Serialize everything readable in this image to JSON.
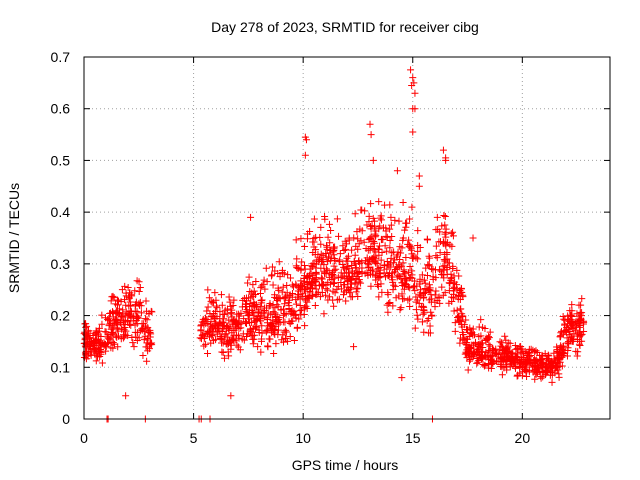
{
  "chart_data": {
    "type": "scatter",
    "title": "Day 278 of 2023, SRMTID for receiver cibg",
    "xlabel": "GPS time / hours",
    "ylabel": "SRMTID / TECUs",
    "xlim": [
      0,
      24
    ],
    "ylim": [
      0,
      0.7
    ],
    "xticks": [
      0,
      5,
      10,
      15,
      20
    ],
    "yticks": [
      0,
      0.1,
      0.2,
      0.3,
      0.4,
      0.5,
      0.6,
      0.7
    ],
    "xtick_labels": [
      "0",
      "5",
      "10",
      "15",
      "20"
    ],
    "ytick_labels": [
      "0",
      "0.1",
      "0.2",
      "0.3",
      "0.4",
      "0.5",
      "0.6",
      "0.7"
    ],
    "grid": true,
    "marker": "+",
    "color": "#ff0000",
    "series_description": "Dense scatter of approx. 2000 '+' points; envelope (hour, low, median, high) used to regenerate",
    "envelope": [
      {
        "x": 0.0,
        "lo": 0.1,
        "med": 0.15,
        "hi": 0.22
      },
      {
        "x": 0.5,
        "lo": 0.09,
        "med": 0.14,
        "hi": 0.21
      },
      {
        "x": 1.0,
        "lo": 0.1,
        "med": 0.16,
        "hi": 0.25
      },
      {
        "x": 1.5,
        "lo": 0.12,
        "med": 0.19,
        "hi": 0.29
      },
      {
        "x": 2.0,
        "lo": 0.12,
        "med": 0.2,
        "hi": 0.31
      },
      {
        "x": 2.5,
        "lo": 0.12,
        "med": 0.19,
        "hi": 0.3
      },
      {
        "x": 3.0,
        "lo": 0.1,
        "med": 0.16,
        "hi": 0.24
      },
      {
        "x": 5.3,
        "lo": 0.11,
        "med": 0.17,
        "hi": 0.24
      },
      {
        "x": 5.8,
        "lo": 0.12,
        "med": 0.19,
        "hi": 0.29
      },
      {
        "x": 6.5,
        "lo": 0.08,
        "med": 0.17,
        "hi": 0.26
      },
      {
        "x": 7.5,
        "lo": 0.12,
        "med": 0.2,
        "hi": 0.3
      },
      {
        "x": 8.5,
        "lo": 0.1,
        "med": 0.2,
        "hi": 0.32
      },
      {
        "x": 9.5,
        "lo": 0.12,
        "med": 0.22,
        "hi": 0.36
      },
      {
        "x": 10.3,
        "lo": 0.18,
        "med": 0.28,
        "hi": 0.45
      },
      {
        "x": 11.0,
        "lo": 0.2,
        "med": 0.3,
        "hi": 0.42
      },
      {
        "x": 12.0,
        "lo": 0.18,
        "med": 0.27,
        "hi": 0.4
      },
      {
        "x": 13.0,
        "lo": 0.22,
        "med": 0.32,
        "hi": 0.5
      },
      {
        "x": 14.0,
        "lo": 0.18,
        "med": 0.3,
        "hi": 0.46
      },
      {
        "x": 15.0,
        "lo": 0.15,
        "med": 0.28,
        "hi": 0.48
      },
      {
        "x": 15.5,
        "lo": 0.13,
        "med": 0.22,
        "hi": 0.38
      },
      {
        "x": 16.5,
        "lo": 0.2,
        "med": 0.32,
        "hi": 0.46
      },
      {
        "x": 17.0,
        "lo": 0.14,
        "med": 0.24,
        "hi": 0.35
      },
      {
        "x": 17.5,
        "lo": 0.09,
        "med": 0.14,
        "hi": 0.22
      },
      {
        "x": 19.0,
        "lo": 0.08,
        "med": 0.12,
        "hi": 0.17
      },
      {
        "x": 20.5,
        "lo": 0.07,
        "med": 0.11,
        "hi": 0.15
      },
      {
        "x": 21.5,
        "lo": 0.06,
        "med": 0.1,
        "hi": 0.14
      },
      {
        "x": 22.0,
        "lo": 0.1,
        "med": 0.17,
        "hi": 0.24
      },
      {
        "x": 22.8,
        "lo": 0.12,
        "med": 0.19,
        "hi": 0.25
      }
    ],
    "segments": [
      [
        0.0,
        3.1
      ],
      [
        5.3,
        22.8
      ]
    ],
    "outliers": [
      {
        "x": 14.9,
        "y": 0.675
      },
      {
        "x": 15.0,
        "y": 0.66
      },
      {
        "x": 15.05,
        "y": 0.65
      },
      {
        "x": 14.95,
        "y": 0.645
      },
      {
        "x": 15.1,
        "y": 0.63
      },
      {
        "x": 15.0,
        "y": 0.555
      },
      {
        "x": 15.1,
        "y": 0.6
      },
      {
        "x": 15.0,
        "y": 0.6
      },
      {
        "x": 10.1,
        "y": 0.545
      },
      {
        "x": 10.15,
        "y": 0.54
      },
      {
        "x": 10.1,
        "y": 0.51
      },
      {
        "x": 13.05,
        "y": 0.57
      },
      {
        "x": 13.1,
        "y": 0.55
      },
      {
        "x": 13.2,
        "y": 0.5
      },
      {
        "x": 16.4,
        "y": 0.52
      },
      {
        "x": 16.5,
        "y": 0.505
      },
      {
        "x": 16.5,
        "y": 0.5
      },
      {
        "x": 14.3,
        "y": 0.48
      },
      {
        "x": 15.3,
        "y": 0.47
      },
      {
        "x": 15.3,
        "y": 0.45
      },
      {
        "x": 14.5,
        "y": 0.08
      },
      {
        "x": 1.9,
        "y": 0.045
      },
      {
        "x": 6.7,
        "y": 0.045
      },
      {
        "x": 7.6,
        "y": 0.39
      },
      {
        "x": 17.75,
        "y": 0.35
      },
      {
        "x": 12.3,
        "y": 0.14
      },
      {
        "x": 1.1,
        "y": 0.0
      },
      {
        "x": 1.05,
        "y": 0.0
      },
      {
        "x": 2.8,
        "y": 0.0
      },
      {
        "x": 5.25,
        "y": 0.0
      },
      {
        "x": 5.35,
        "y": 0.0
      },
      {
        "x": 5.75,
        "y": 0.0
      },
      {
        "x": 15.9,
        "y": 0.0
      }
    ]
  }
}
